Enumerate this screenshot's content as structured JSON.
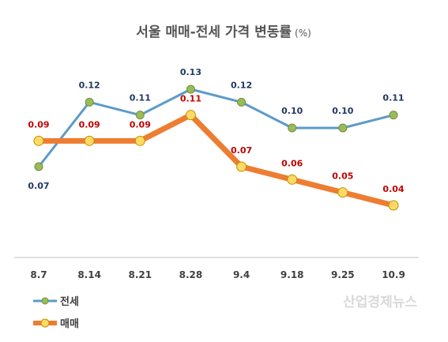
{
  "chart_data": {
    "type": "line",
    "title": "서울 매매-전세 가격 변동률",
    "unit": "(%)",
    "categories": [
      "8.7",
      "8.14",
      "8.21",
      "8.28",
      "9.4",
      "9.18",
      "9.25",
      "10.9"
    ],
    "series": [
      {
        "name": "전세",
        "values": [
          0.07,
          0.12,
          0.11,
          0.13,
          0.12,
          0.1,
          0.1,
          0.11
        ],
        "labels": [
          "0.07",
          "0.12",
          "0.11",
          "0.13",
          "0.12",
          "0.10",
          "0.10",
          "0.11"
        ],
        "color": "#5b9bc9",
        "marker_color": "#9bbb59"
      },
      {
        "name": "매매",
        "values": [
          0.09,
          0.09,
          0.09,
          0.11,
          0.07,
          0.06,
          0.05,
          0.04
        ],
        "labels": [
          "0.09",
          "0.09",
          "0.09",
          "0.11",
          "0.07",
          "0.06",
          "0.05",
          "0.04"
        ],
        "color": "#ed7d31",
        "marker_color": "#ffd966"
      }
    ],
    "ylim": [
      0.0,
      0.15
    ],
    "grid": false,
    "legend": "bottom-left"
  },
  "watermark": "산업경제뉴스"
}
